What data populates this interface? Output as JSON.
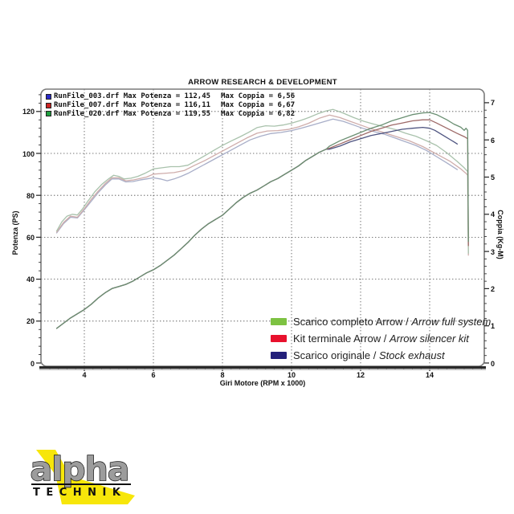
{
  "title": "ARROW RESEARCH & DEVELOPMENT",
  "runfile_labels": {
    "potenza_prefix": "Max Potenza = ",
    "coppia_prefix": "Max Coppia = "
  },
  "runfile_legend": [
    {
      "file": "RunFile_003.drf",
      "max_potenza": "112,45",
      "max_coppia": "6,56",
      "color": "#2a2ac8"
    },
    {
      "file": "RunFile_007.drf",
      "max_potenza": "116,11",
      "max_coppia": "6,67",
      "color": "#cc2222"
    },
    {
      "file": "RunFile_020.drf",
      "max_potenza": "119,55",
      "max_coppia": "6,82",
      "color": "#1e9e3e"
    }
  ],
  "legend": [
    {
      "label": "Scarico completo Arrow",
      "label_en": "Arrow full system",
      "color": "#7dc242"
    },
    {
      "label": "Kit terminale Arrow",
      "label_en": "Arrow silencer kit",
      "color": "#e8112d"
    },
    {
      "label": "Scarico originale",
      "label_en": "Stock exhaust",
      "color": "#23207a"
    }
  ],
  "logo": {
    "word1": "alpha",
    "word2": "TECHNIK",
    "yellow": "#f7e60a",
    "gray": "#9c9c9c",
    "black": "#111111"
  },
  "chart_data": {
    "type": "line",
    "title": "ARROW RESEARCH & DEVELOPMENT",
    "xlabel": "Giri Motore (RPM x 1000)",
    "ylabel_left": "Potenza (PS)",
    "ylabel_right": "Coppia (Kg-M)",
    "xlim": [
      2.75,
      15.6
    ],
    "ylim_left": [
      0,
      131
    ],
    "ylim_right": [
      0,
      7.4
    ],
    "x_ticks": [
      4,
      6,
      8,
      10,
      12,
      14
    ],
    "y_left_ticks": [
      0,
      20,
      40,
      60,
      80,
      100,
      120
    ],
    "y_right_ticks": [
      0,
      1,
      2,
      3,
      4,
      5,
      6,
      7
    ],
    "grid": true,
    "legend_position": "middle-right",
    "power_trunk": [
      [
        3.2,
        16.5
      ],
      [
        3.4,
        19
      ],
      [
        3.6,
        21.5
      ],
      [
        3.8,
        23.5
      ],
      [
        4.0,
        25.5
      ],
      [
        4.2,
        28
      ],
      [
        4.4,
        31
      ],
      [
        4.6,
        33.5
      ],
      [
        4.8,
        35.5
      ],
      [
        5.0,
        36.5
      ],
      [
        5.2,
        37.5
      ],
      [
        5.4,
        39
      ],
      [
        5.6,
        41
      ],
      [
        5.8,
        43
      ],
      [
        6.0,
        44.5
      ],
      [
        6.2,
        46.5
      ],
      [
        6.4,
        49
      ],
      [
        6.6,
        51.5
      ],
      [
        6.8,
        54.5
      ],
      [
        7.0,
        57.5
      ],
      [
        7.2,
        61
      ],
      [
        7.4,
        64
      ],
      [
        7.6,
        66.5
      ],
      [
        7.8,
        68.5
      ],
      [
        8.0,
        70.5
      ],
      [
        8.2,
        73.5
      ],
      [
        8.4,
        76.5
      ],
      [
        8.6,
        79
      ],
      [
        8.8,
        81
      ],
      [
        9.0,
        82.5
      ],
      [
        9.2,
        84.5
      ],
      [
        9.4,
        86.5
      ],
      [
        9.6,
        88
      ],
      [
        9.8,
        90
      ],
      [
        10.0,
        92
      ],
      [
        10.2,
        94
      ],
      [
        10.4,
        96.5
      ],
      [
        10.6,
        98.5
      ],
      [
        10.8,
        100.5
      ],
      [
        11.0,
        102
      ]
    ],
    "series": [
      {
        "name": "coppia-scarico-originale",
        "axis": "right",
        "color": "#a8aec8",
        "points": [
          [
            3.2,
            3.5
          ],
          [
            3.4,
            3.75
          ],
          [
            3.6,
            3.92
          ],
          [
            3.8,
            3.9
          ],
          [
            4.0,
            4.12
          ],
          [
            4.2,
            4.35
          ],
          [
            4.4,
            4.58
          ],
          [
            4.6,
            4.78
          ],
          [
            4.8,
            4.95
          ],
          [
            5.0,
            4.95
          ],
          [
            5.2,
            4.87
          ],
          [
            5.4,
            4.88
          ],
          [
            5.6,
            4.92
          ],
          [
            5.8,
            4.95
          ],
          [
            6.0,
            4.98
          ],
          [
            6.2,
            4.95
          ],
          [
            6.4,
            4.9
          ],
          [
            6.6,
            4.95
          ],
          [
            6.8,
            5.02
          ],
          [
            7.0,
            5.1
          ],
          [
            7.3,
            5.25
          ],
          [
            7.6,
            5.4
          ],
          [
            7.9,
            5.55
          ],
          [
            8.2,
            5.7
          ],
          [
            8.5,
            5.85
          ],
          [
            8.8,
            6.0
          ],
          [
            9.1,
            6.1
          ],
          [
            9.4,
            6.17
          ],
          [
            9.7,
            6.2
          ],
          [
            10.0,
            6.25
          ],
          [
            10.3,
            6.32
          ],
          [
            10.6,
            6.4
          ],
          [
            10.9,
            6.48
          ],
          [
            11.2,
            6.56
          ],
          [
            11.5,
            6.5
          ],
          [
            11.8,
            6.4
          ],
          [
            12.1,
            6.3
          ],
          [
            12.4,
            6.22
          ],
          [
            12.7,
            6.15
          ],
          [
            13.0,
            6.05
          ],
          [
            13.3,
            5.95
          ],
          [
            13.6,
            5.85
          ],
          [
            13.9,
            5.72
          ],
          [
            14.2,
            5.55
          ],
          [
            14.5,
            5.38
          ],
          [
            14.8,
            5.2
          ]
        ]
      },
      {
        "name": "coppia-kit-terminale",
        "axis": "right",
        "color": "#cfadab",
        "points": [
          [
            3.2,
            3.52
          ],
          [
            3.4,
            3.78
          ],
          [
            3.6,
            3.95
          ],
          [
            3.8,
            3.92
          ],
          [
            4.0,
            4.15
          ],
          [
            4.2,
            4.4
          ],
          [
            4.4,
            4.62
          ],
          [
            4.6,
            4.82
          ],
          [
            4.8,
            4.98
          ],
          [
            5.0,
            4.98
          ],
          [
            5.2,
            4.9
          ],
          [
            5.4,
            4.92
          ],
          [
            5.6,
            4.96
          ],
          [
            5.8,
            5.0
          ],
          [
            6.0,
            5.08
          ],
          [
            6.3,
            5.1
          ],
          [
            6.6,
            5.12
          ],
          [
            6.9,
            5.18
          ],
          [
            7.2,
            5.32
          ],
          [
            7.5,
            5.45
          ],
          [
            7.8,
            5.6
          ],
          [
            8.1,
            5.75
          ],
          [
            8.4,
            5.9
          ],
          [
            8.7,
            6.05
          ],
          [
            9.0,
            6.18
          ],
          [
            9.3,
            6.24
          ],
          [
            9.6,
            6.25
          ],
          [
            9.9,
            6.28
          ],
          [
            10.2,
            6.35
          ],
          [
            10.5,
            6.45
          ],
          [
            10.8,
            6.58
          ],
          [
            11.1,
            6.67
          ],
          [
            11.4,
            6.6
          ],
          [
            11.7,
            6.5
          ],
          [
            12.0,
            6.4
          ],
          [
            12.3,
            6.3
          ],
          [
            12.6,
            6.22
          ],
          [
            13.0,
            6.1
          ],
          [
            13.4,
            5.98
          ],
          [
            13.8,
            5.82
          ],
          [
            14.2,
            5.62
          ],
          [
            14.6,
            5.42
          ],
          [
            14.9,
            5.22
          ],
          [
            15.05,
            5.1
          ],
          [
            15.1,
            5.05
          ],
          [
            15.12,
            2.9
          ]
        ]
      },
      {
        "name": "coppia-scarico-completo",
        "axis": "right",
        "color": "#a9c2ac",
        "points": [
          [
            3.2,
            3.55
          ],
          [
            3.35,
            3.8
          ],
          [
            3.5,
            3.95
          ],
          [
            3.65,
            4.0
          ],
          [
            3.8,
            3.98
          ],
          [
            3.95,
            4.15
          ],
          [
            4.1,
            4.35
          ],
          [
            4.3,
            4.6
          ],
          [
            4.5,
            4.8
          ],
          [
            4.7,
            4.95
          ],
          [
            4.85,
            5.05
          ],
          [
            5.0,
            5.02
          ],
          [
            5.15,
            4.95
          ],
          [
            5.35,
            4.97
          ],
          [
            5.55,
            5.02
          ],
          [
            5.75,
            5.1
          ],
          [
            6.0,
            5.22
          ],
          [
            6.25,
            5.25
          ],
          [
            6.5,
            5.28
          ],
          [
            6.75,
            5.28
          ],
          [
            7.0,
            5.32
          ],
          [
            7.25,
            5.45
          ],
          [
            7.5,
            5.58
          ],
          [
            7.75,
            5.72
          ],
          [
            8.0,
            5.85
          ],
          [
            8.25,
            5.97
          ],
          [
            8.5,
            6.08
          ],
          [
            8.75,
            6.2
          ],
          [
            9.0,
            6.33
          ],
          [
            9.25,
            6.38
          ],
          [
            9.5,
            6.37
          ],
          [
            9.75,
            6.4
          ],
          [
            10.0,
            6.45
          ],
          [
            10.25,
            6.52
          ],
          [
            10.5,
            6.6
          ],
          [
            10.75,
            6.7
          ],
          [
            11.0,
            6.78
          ],
          [
            11.2,
            6.82
          ],
          [
            11.5,
            6.72
          ],
          [
            11.8,
            6.6
          ],
          [
            12.1,
            6.5
          ],
          [
            12.4,
            6.42
          ],
          [
            12.7,
            6.35
          ],
          [
            13.0,
            6.28
          ],
          [
            13.3,
            6.18
          ],
          [
            13.6,
            6.1
          ],
          [
            13.9,
            5.98
          ],
          [
            14.2,
            5.85
          ],
          [
            14.5,
            5.65
          ],
          [
            14.8,
            5.42
          ],
          [
            15.0,
            5.25
          ],
          [
            15.1,
            5.15
          ],
          [
            15.12,
            2.95
          ]
        ]
      },
      {
        "name": "potenza-scarico-originale",
        "axis": "left",
        "color": "#4e5480",
        "base": "power_trunk",
        "points": [
          [
            11.1,
            102
          ],
          [
            11.4,
            103.5
          ],
          [
            11.7,
            105.5
          ],
          [
            12.0,
            107
          ],
          [
            12.3,
            108.5
          ],
          [
            12.6,
            109.5
          ],
          [
            12.9,
            110.5
          ],
          [
            13.2,
            111.5
          ],
          [
            13.5,
            112
          ],
          [
            13.8,
            112.4
          ],
          [
            14.0,
            112
          ],
          [
            14.15,
            111
          ],
          [
            14.3,
            109.5
          ],
          [
            14.45,
            108
          ],
          [
            14.6,
            106.5
          ],
          [
            14.7,
            105.5
          ],
          [
            14.8,
            104.5
          ]
        ]
      },
      {
        "name": "potenza-kit-terminale",
        "axis": "left",
        "color": "#9e6a68",
        "base": "power_trunk",
        "points": [
          [
            11.1,
            102.5
          ],
          [
            11.4,
            104.5
          ],
          [
            11.7,
            106.5
          ],
          [
            12.0,
            108.5
          ],
          [
            12.3,
            110.5
          ],
          [
            12.6,
            112
          ],
          [
            12.9,
            113.5
          ],
          [
            13.2,
            114.5
          ],
          [
            13.5,
            115.5
          ],
          [
            13.8,
            116
          ],
          [
            14.0,
            116
          ],
          [
            14.2,
            114.5
          ],
          [
            14.5,
            112
          ],
          [
            14.8,
            109.5
          ],
          [
            15.0,
            108
          ],
          [
            15.1,
            107
          ],
          [
            15.12,
            56
          ]
        ]
      },
      {
        "name": "potenza-scarico-completo",
        "axis": "left",
        "color": "#6a8f72",
        "base": "power_trunk",
        "points": [
          [
            11.1,
            103.5
          ],
          [
            11.4,
            106
          ],
          [
            11.7,
            108
          ],
          [
            12.0,
            110
          ],
          [
            12.3,
            112
          ],
          [
            12.6,
            113.5
          ],
          [
            12.9,
            115.5
          ],
          [
            13.2,
            117
          ],
          [
            13.5,
            118.5
          ],
          [
            13.8,
            119.3
          ],
          [
            14.0,
            119.5
          ],
          [
            14.2,
            118.5
          ],
          [
            14.5,
            116
          ],
          [
            14.7,
            114
          ],
          [
            14.9,
            112.5
          ],
          [
            15.0,
            111
          ],
          [
            15.05,
            112
          ],
          [
            15.1,
            111
          ],
          [
            15.12,
            58
          ]
        ]
      }
    ]
  }
}
